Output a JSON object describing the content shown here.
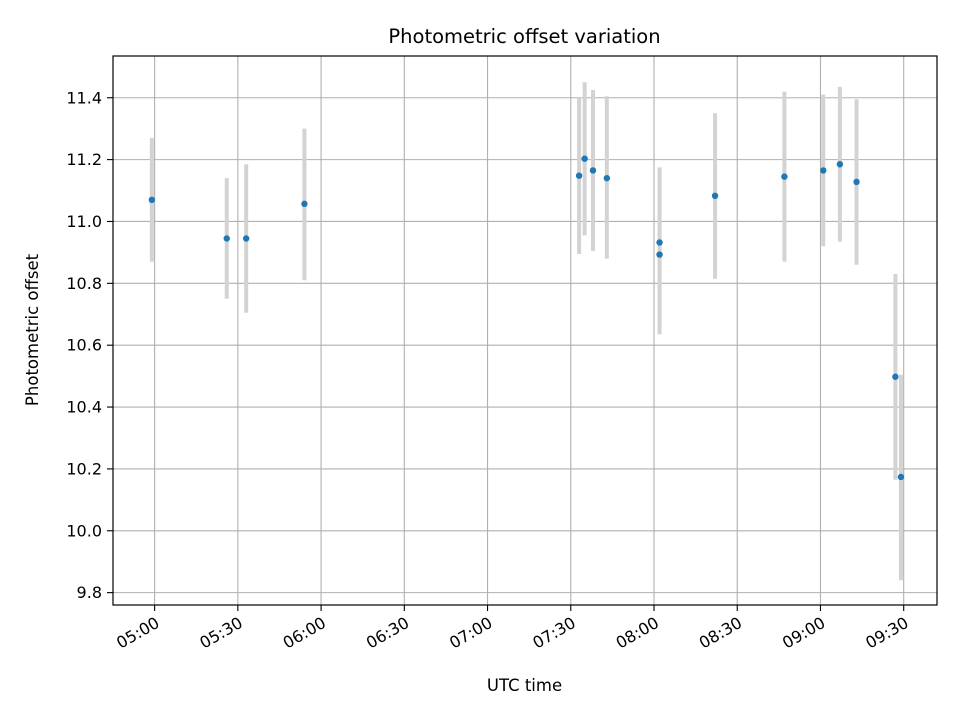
{
  "chart_data": {
    "type": "scatter",
    "title": "Photometric offset variation",
    "xlabel": "UTC time",
    "ylabel": "Photometric offset",
    "xlim": [
      "04:45",
      "09:42"
    ],
    "ylim": [
      9.76,
      11.535
    ],
    "x_ticks": [
      "05:00",
      "05:30",
      "06:00",
      "06:30",
      "07:00",
      "07:30",
      "08:00",
      "08:30",
      "09:00",
      "09:30"
    ],
    "y_ticks": [
      "9.8",
      "10.0",
      "10.2",
      "10.4",
      "10.6",
      "10.8",
      "11.0",
      "11.2",
      "11.4"
    ],
    "grid": true,
    "point_color": "#1f77b4",
    "error_bar_color": "#d3d3d3",
    "points": [
      {
        "time": "04:59",
        "y": 11.07,
        "ylow": 10.87,
        "yhigh": 11.27
      },
      {
        "time": "05:26",
        "y": 10.945,
        "ylow": 10.75,
        "yhigh": 11.14
      },
      {
        "time": "05:33",
        "y": 10.945,
        "ylow": 10.705,
        "yhigh": 11.185
      },
      {
        "time": "05:54",
        "y": 11.057,
        "ylow": 10.81,
        "yhigh": 11.3
      },
      {
        "time": "07:33",
        "y": 11.148,
        "ylow": 10.895,
        "yhigh": 11.4
      },
      {
        "time": "07:35",
        "y": 11.203,
        "ylow": 10.955,
        "yhigh": 11.45
      },
      {
        "time": "07:38",
        "y": 11.165,
        "ylow": 10.905,
        "yhigh": 11.425
      },
      {
        "time": "07:43",
        "y": 11.14,
        "ylow": 10.88,
        "yhigh": 11.405
      },
      {
        "time": "08:02",
        "y": 10.932,
        "ylow": 10.685,
        "yhigh": 11.175
      },
      {
        "time": "08:02",
        "y": 10.893,
        "ylow": 10.635,
        "yhigh": 11.155
      },
      {
        "time": "08:22",
        "y": 11.083,
        "ylow": 10.815,
        "yhigh": 11.35
      },
      {
        "time": "08:47",
        "y": 11.145,
        "ylow": 10.87,
        "yhigh": 11.42
      },
      {
        "time": "09:01",
        "y": 11.165,
        "ylow": 10.92,
        "yhigh": 11.41
      },
      {
        "time": "09:07",
        "y": 11.185,
        "ylow": 10.935,
        "yhigh": 11.435
      },
      {
        "time": "09:13",
        "y": 11.128,
        "ylow": 10.86,
        "yhigh": 11.395
      },
      {
        "time": "09:27",
        "y": 10.498,
        "ylow": 10.165,
        "yhigh": 10.83
      },
      {
        "time": "09:29",
        "y": 10.174,
        "ylow": 9.84,
        "yhigh": 10.505
      }
    ]
  }
}
